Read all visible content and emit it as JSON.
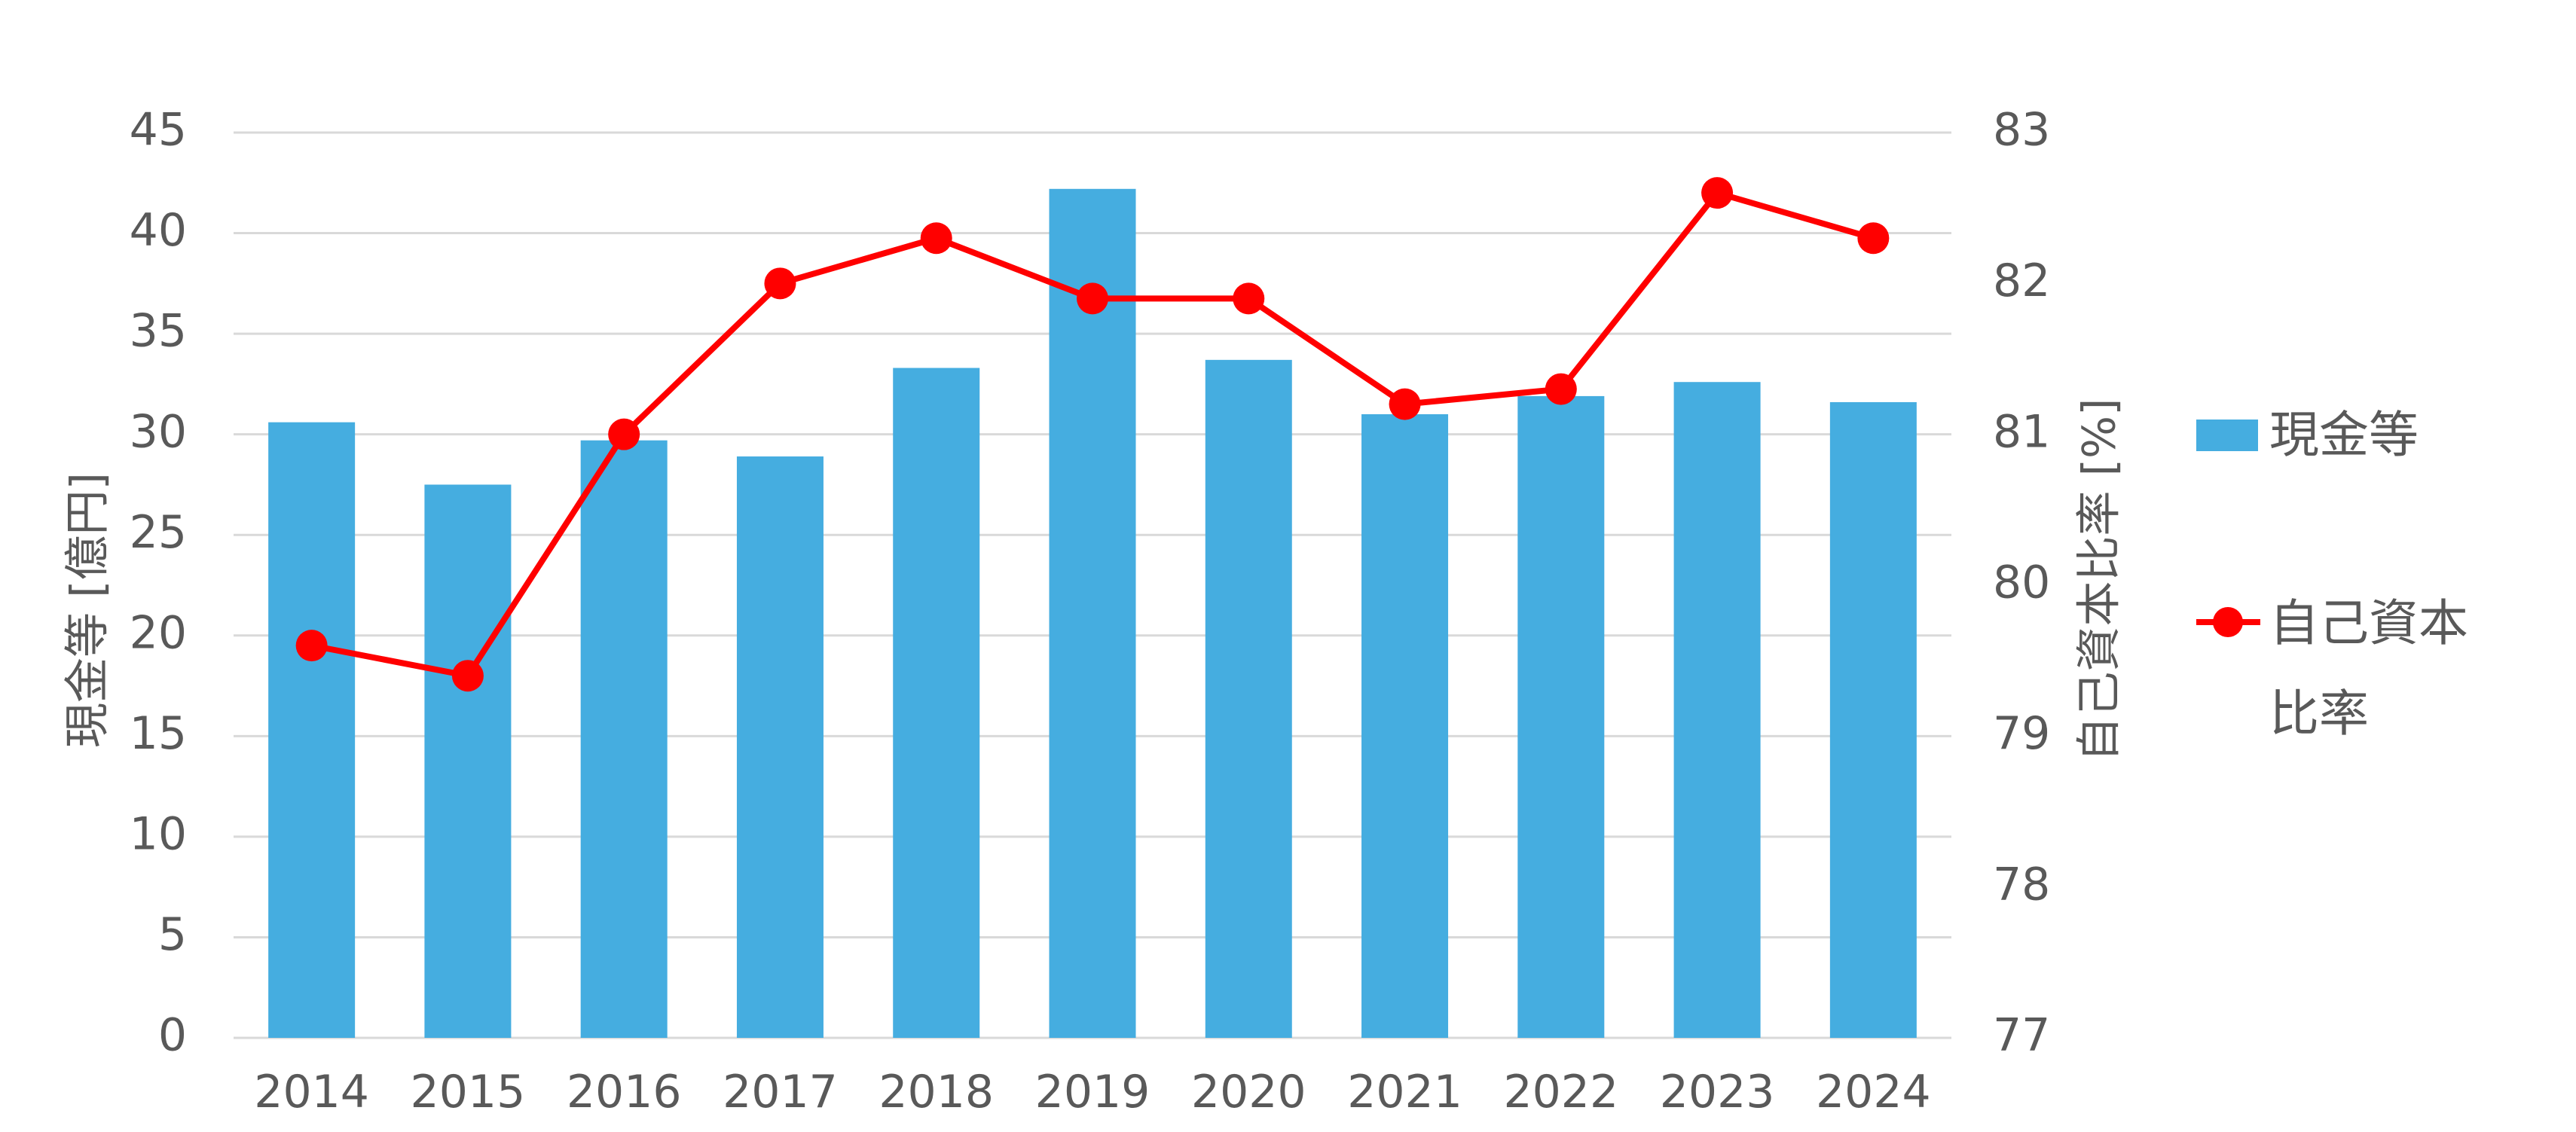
{
  "chart_data": {
    "type": "bar+line",
    "categories": [
      "2014",
      "2015",
      "2016",
      "2017",
      "2018",
      "2019",
      "2020",
      "2021",
      "2022",
      "2023",
      "2024"
    ],
    "series": [
      {
        "name": "現金等",
        "type": "bar",
        "axis": "left",
        "color": "#45ade0",
        "values": [
          30.6,
          27.5,
          29.7,
          28.9,
          33.3,
          42.2,
          33.7,
          31.0,
          31.9,
          32.6,
          31.6
        ]
      },
      {
        "name": "自己資本比率",
        "type": "line",
        "axis": "right",
        "color": "#ff0000",
        "values": [
          79.6,
          79.4,
          81.0,
          82.0,
          82.3,
          81.9,
          81.9,
          81.2,
          81.3,
          82.6,
          82.3
        ]
      }
    ],
    "yleft": {
      "label": "現金等 [億円]",
      "ylim": [
        0,
        45
      ],
      "ticks": [
        "0",
        "5",
        "10",
        "15",
        "20",
        "25",
        "30",
        "35",
        "40",
        "45"
      ]
    },
    "yright": {
      "label": "自己資本比率 [%]",
      "ylim": [
        77,
        83
      ],
      "ticks": [
        "77",
        "78",
        "79",
        "80",
        "81",
        "82",
        "83"
      ]
    },
    "grid": true,
    "legend": {
      "position": "right",
      "bar_label": "現金等",
      "line_label_1": "自己資本",
      "line_label_2": "比率"
    }
  }
}
